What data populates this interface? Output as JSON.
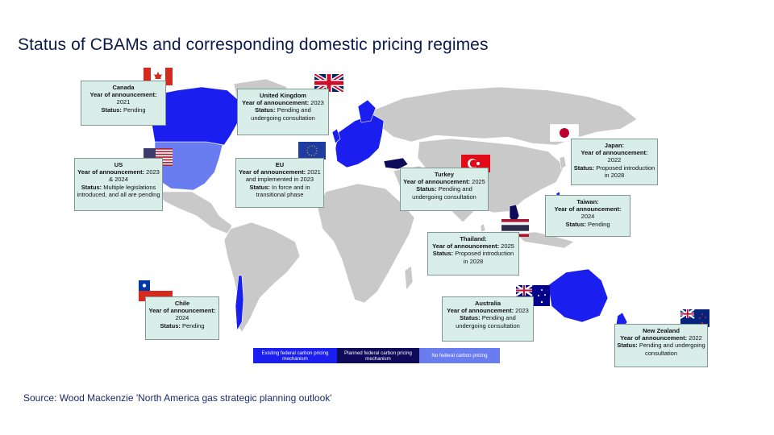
{
  "title": "Status of CBAMs and corresponding domestic pricing regimes",
  "source": "Source: Wood Mackenzie 'North America gas strategic planning outlook'",
  "colors": {
    "existing": "#1a1ff0",
    "planned": "#0d0a5a",
    "none": "#6a7df0",
    "land": "#c9c9c9",
    "box_bg": "#d9ede9"
  },
  "legend": {
    "existing": "Existing federal carbon pricing mechanism",
    "planned": "Planned federal carbon pricing mechanism",
    "none": "No federal carbon pricing"
  },
  "callouts": {
    "canada": {
      "name": "Canada",
      "year_label": "Year of announcement:",
      "year": "2021",
      "status_label": "Status:",
      "status": "Pending"
    },
    "uk": {
      "name": "United Kingdom",
      "year_label": "Year of announcement:",
      "year": "2023",
      "status_label": "Status:",
      "status": "Pending and undergoing consultation"
    },
    "us": {
      "name": "US",
      "year_label": "Year of announcement:",
      "year": "2023 & 2024",
      "status_label": "Status:",
      "status": "Multiple legislations introduced, and all are pending"
    },
    "eu": {
      "name": "EU",
      "year_label": "Year of announcement:",
      "year": "2021 and implemented in 2023",
      "status_label": "Status:",
      "status": "In force and in transitional phase"
    },
    "turkey": {
      "name": "Turkey",
      "year_label": "Year of announcement:",
      "year": "2025",
      "status_label": "Status:",
      "status": "Pending and undergoing consultation"
    },
    "japan": {
      "name": "Japan:",
      "year_label": "Year of announcement:",
      "year": "2022",
      "status_label": "Status:",
      "status": "Proposed introduction in 2028"
    },
    "taiwan": {
      "name": "Taiwan:",
      "year_label": "Year of announcement:",
      "year": "2024",
      "status_label": "Status:",
      "status": "Pending"
    },
    "thailand": {
      "name": "Thailand:",
      "year_label": "Year of announcement:",
      "year": "2025",
      "status_label": "Status:",
      "status": "Proposed introduction in 2028"
    },
    "chile": {
      "name": "Chile",
      "year_label": "Year of announcement:",
      "year": "2024",
      "status_label": "Status:",
      "status": "Pending"
    },
    "australia": {
      "name": "Australia",
      "year_label": "Year of announcement:",
      "year": "2023",
      "status_label": "Status:",
      "status": "Pending and undergoing consultation"
    },
    "newzealand": {
      "name": "New Zealand",
      "year_label": "Year of announcement:",
      "year": "2022",
      "status_label": "Status:",
      "status": "Pending and undergoing consultation"
    }
  },
  "flags": [
    "canada-flag-icon",
    "uk-flag-icon",
    "us-flag-icon",
    "eu-flag-icon",
    "turkey-flag-icon",
    "japan-flag-icon",
    "thailand-flag-icon",
    "chile-flag-icon",
    "australia-flag-icon",
    "newzealand-flag-icon"
  ]
}
